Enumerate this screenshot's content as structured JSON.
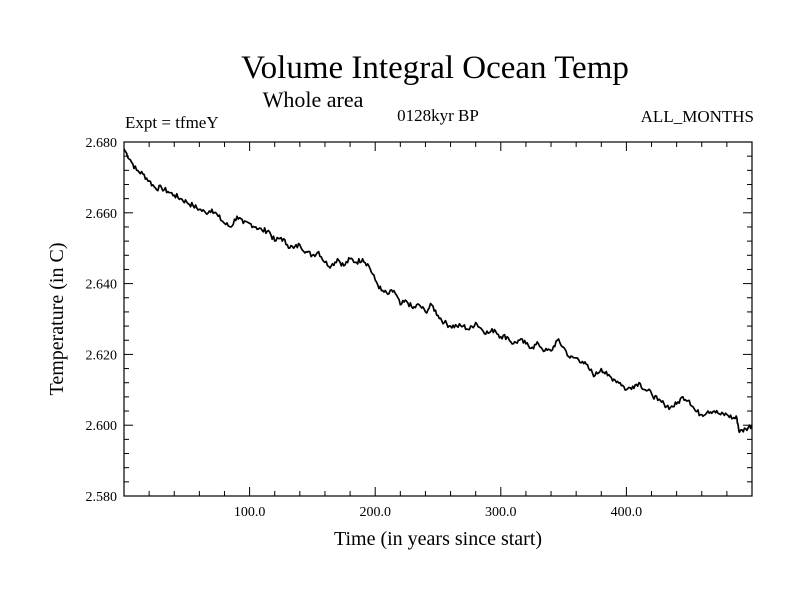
{
  "chart_data": {
    "type": "line",
    "title": "Volume Integral Ocean Temp",
    "subtitle": "Whole area",
    "left_label": "Expt = tfmeY",
    "center_label": "0128kyr BP",
    "right_label": "ALL_MONTHS",
    "xlabel": "Time (in years since start)",
    "ylabel": "Temperature (in C)",
    "xlim": [
      0,
      500
    ],
    "ylim": [
      2.58,
      2.68
    ],
    "x_ticks": [
      100,
      200,
      300,
      400
    ],
    "x_tick_labels": [
      "100.0",
      "200.0",
      "300.0",
      "400.0"
    ],
    "y_ticks": [
      2.58,
      2.6,
      2.62,
      2.64,
      2.66,
      2.68
    ],
    "y_tick_labels": [
      "2.580",
      "2.600",
      "2.620",
      "2.640",
      "2.660",
      "2.680"
    ],
    "grid": false,
    "legend": "none",
    "line_color": "#000000",
    "series": [
      {
        "x": [
          0,
          5,
          10,
          15,
          20,
          25,
          30,
          35,
          40,
          45,
          50,
          55,
          60,
          65,
          70,
          75,
          80,
          85,
          90,
          95,
          100,
          105,
          110,
          115,
          120,
          125,
          130,
          135,
          140,
          145,
          150,
          155,
          160,
          165,
          170,
          175,
          180,
          185,
          190,
          195,
          200,
          205,
          210,
          215,
          220,
          225,
          230,
          235,
          240,
          245,
          250,
          255,
          260,
          265,
          270,
          275,
          280,
          285,
          290,
          295,
          300,
          305,
          310,
          315,
          320,
          325,
          330,
          335,
          340,
          345,
          350,
          355,
          360,
          365,
          370,
          375,
          380,
          385,
          390,
          395,
          400,
          405,
          410,
          415,
          420,
          425,
          430,
          435,
          440,
          445,
          450,
          455,
          460,
          465,
          470,
          475,
          480,
          485,
          488,
          490,
          495,
          500
        ],
        "values": [
          2.678,
          2.675,
          2.672,
          2.671,
          2.669,
          2.667,
          2.667,
          2.666,
          2.665,
          2.664,
          2.663,
          2.662,
          2.661,
          2.66,
          2.661,
          2.659,
          2.657,
          2.656,
          2.659,
          2.657,
          2.657,
          2.656,
          2.655,
          2.655,
          2.652,
          2.653,
          2.651,
          2.65,
          2.651,
          2.649,
          2.648,
          2.649,
          2.646,
          2.645,
          2.647,
          2.645,
          2.647,
          2.646,
          2.647,
          2.645,
          2.641,
          2.638,
          2.637,
          2.638,
          2.634,
          2.635,
          2.633,
          2.634,
          2.632,
          2.634,
          2.631,
          2.629,
          2.628,
          2.628,
          2.628,
          2.627,
          2.629,
          2.627,
          2.626,
          2.627,
          2.625,
          2.625,
          2.623,
          2.624,
          2.623,
          2.622,
          2.623,
          2.621,
          2.621,
          2.624,
          2.622,
          2.619,
          2.619,
          2.618,
          2.616,
          2.614,
          2.616,
          2.614,
          2.613,
          2.612,
          2.61,
          2.611,
          2.612,
          2.61,
          2.609,
          2.607,
          2.606,
          2.605,
          2.606,
          2.608,
          2.607,
          2.604,
          2.603,
          2.604,
          2.604,
          2.603,
          2.603,
          2.602,
          2.602,
          2.598,
          2.599,
          2.6
        ]
      }
    ]
  }
}
